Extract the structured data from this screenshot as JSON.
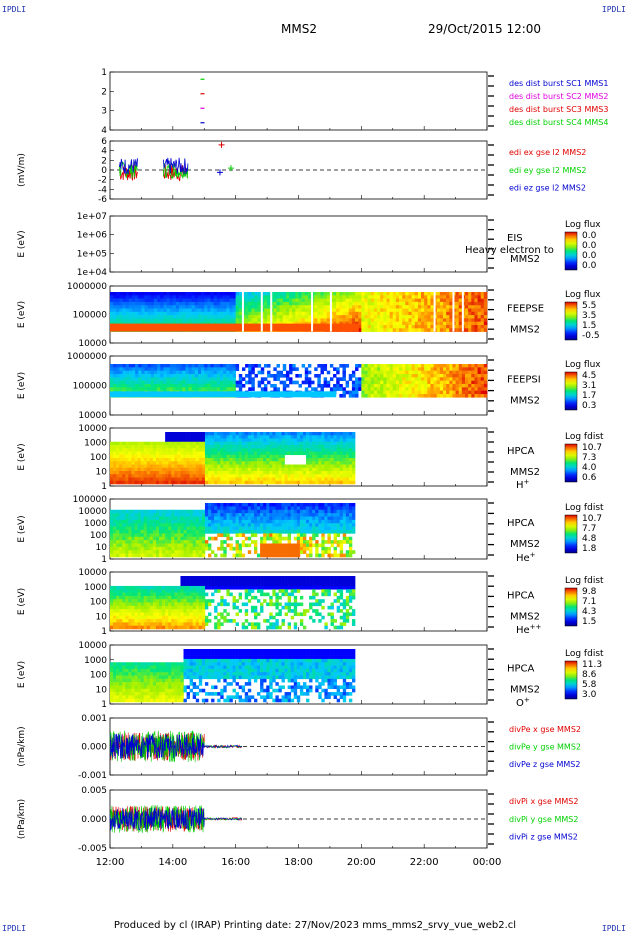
{
  "header": {
    "corner_tl": "IPDLI",
    "corner_tr": "IPDLI",
    "corner_bl": "IPDLI",
    "corner_br": "IPDLI",
    "mission": "MMS2",
    "datetime": "29/Oct/2015 12:00"
  },
  "footer": {
    "text": "Produced by cl (IRAP)   Printing date: 27/Nov/2023   mms_mms2_srvy_vue_web2.cl"
  },
  "colors": {
    "red": "#e00000",
    "magenta": "#e000e0",
    "green": "#00d000",
    "blue": "#0000d0"
  },
  "chart_data": [
    {
      "type": "scatter",
      "panel": "des-burst",
      "yticks": [
        "1",
        "2",
        "3",
        "4"
      ],
      "ylim": [
        0.5,
        4.5
      ],
      "legend": [
        {
          "text": "des dist burst SC1 MMS1",
          "color": "#0000d0"
        },
        {
          "text": "des dist burst SC2 MMS2",
          "color": "#e000e0"
        },
        {
          "text": "des dist burst SC3 MMS3",
          "color": "#e00000"
        },
        {
          "text": "des dist burst SC4 MMS4",
          "color": "#00d000"
        }
      ],
      "series": [
        {
          "x": "14:53",
          "y": 1,
          "color": "#0000d0"
        },
        {
          "x": "14:53",
          "y": 2,
          "color": "#e000e0"
        },
        {
          "x": "14:53",
          "y": 3,
          "color": "#e00000"
        },
        {
          "x": "14:53",
          "y": 4,
          "color": "#00d000"
        }
      ]
    },
    {
      "type": "line",
      "panel": "edi",
      "ylabel": "(mV/m)",
      "yticks": [
        "6",
        "4",
        "2",
        "0",
        "-2",
        "-4",
        "-6"
      ],
      "ylim": [
        -6,
        6
      ],
      "legend": [
        {
          "text": "edi ex gse l2 MMS2",
          "color": "#e00000"
        },
        {
          "text": "edi ey gse l2 MMS2",
          "color": "#00d000"
        },
        {
          "text": "edi ez gse l2 MMS2",
          "color": "#0000d0"
        }
      ]
    },
    {
      "type": "heatmap",
      "panel": "eis",
      "ylabel": "E (eV)",
      "yticks": [
        "1e+07",
        "1e+06",
        "1e+05",
        "1e+04"
      ],
      "label_lines": [
        "EIS",
        "MMS2"
      ],
      "overlay_text": "Heavy electron to",
      "colorbar_title": "Log flux",
      "colorbar_ticks": [
        "0.0",
        "0.0",
        "0.0",
        "0.0"
      ]
    },
    {
      "type": "heatmap",
      "panel": "feepse",
      "ylabel": "E (eV)",
      "yticks": [
        "1000000",
        "100000",
        "10000"
      ],
      "label_lines": [
        "FEEPSE",
        "MMS2"
      ],
      "colorbar_title": "Log flux",
      "colorbar_ticks": [
        "5.5",
        "3.5",
        "1.5",
        "-0.5"
      ]
    },
    {
      "type": "heatmap",
      "panel": "feepsi",
      "ylabel": "E (eV)",
      "yticks": [
        "1000000",
        "100000",
        "10000"
      ],
      "label_lines": [
        "FEEPSI",
        "MMS2"
      ],
      "colorbar_title": "Log flux",
      "colorbar_ticks": [
        "4.5",
        "3.1",
        "1.7",
        "0.3"
      ]
    },
    {
      "type": "heatmap",
      "panel": "hpca-h",
      "ylabel": "E (eV)",
      "yticks": [
        "10000",
        "1000",
        "100",
        "10",
        "1"
      ],
      "label_lines": [
        "HPCA",
        "MMS2"
      ],
      "species": "H",
      "species_sup": "+",
      "colorbar_title": "Log fdist",
      "colorbar_ticks": [
        "10.7",
        "7.3",
        "4.0",
        "0.6"
      ]
    },
    {
      "type": "heatmap",
      "panel": "hpca-he",
      "ylabel": "E (eV)",
      "yticks": [
        "100000",
        "10000",
        "1000",
        "100",
        "10",
        "1"
      ],
      "label_lines": [
        "HPCA",
        "MMS2"
      ],
      "species": "He",
      "species_sup": "+",
      "colorbar_title": "Log fdist",
      "colorbar_ticks": [
        "10.7",
        "7.7",
        "4.8",
        "1.8"
      ]
    },
    {
      "type": "heatmap",
      "panel": "hpca-hepp",
      "ylabel": "E (eV)",
      "yticks": [
        "10000",
        "1000",
        "100",
        "10",
        "1"
      ],
      "label_lines": [
        "HPCA",
        "MMS2"
      ],
      "species": "He",
      "species_sup": "++",
      "colorbar_title": "Log fdist",
      "colorbar_ticks": [
        "9.8",
        "7.1",
        "4.3",
        "1.5"
      ]
    },
    {
      "type": "heatmap",
      "panel": "hpca-o",
      "ylabel": "E (eV)",
      "yticks": [
        "10000",
        "1000",
        "100",
        "10",
        "1"
      ],
      "label_lines": [
        "HPCA",
        "MMS2"
      ],
      "species": "O",
      "species_sup": "+",
      "colorbar_title": "Log fdist",
      "colorbar_ticks": [
        "11.3",
        "8.6",
        "5.8",
        "3.0"
      ]
    },
    {
      "type": "line",
      "panel": "divpe",
      "ylabel": "(nPa/km)",
      "yticks": [
        "0.001",
        "0.000",
        "-0.001"
      ],
      "ylim": [
        -0.0015,
        0.0015
      ],
      "legend": [
        {
          "text": "divPe x gse MMS2",
          "color": "#e00000"
        },
        {
          "text": "divPe y gse MMS2",
          "color": "#00d000"
        },
        {
          "text": "divPe z gse MMS2",
          "color": "#0000d0"
        }
      ]
    },
    {
      "type": "line",
      "panel": "divpi",
      "ylabel": "(nPa/km)",
      "yticks": [
        "0.005",
        "0.000",
        "-0.005"
      ],
      "ylim": [
        -0.008,
        0.008
      ],
      "legend": [
        {
          "text": "divPi x gse MMS2",
          "color": "#e00000"
        },
        {
          "text": "divPi y gse MMS2",
          "color": "#00d000"
        },
        {
          "text": "divPi z gse MMS2",
          "color": "#0000d0"
        }
      ]
    }
  ],
  "xaxis": {
    "ticks": [
      "12:00",
      "14:00",
      "16:00",
      "18:00",
      "20:00",
      "22:00",
      "00:00"
    ]
  }
}
